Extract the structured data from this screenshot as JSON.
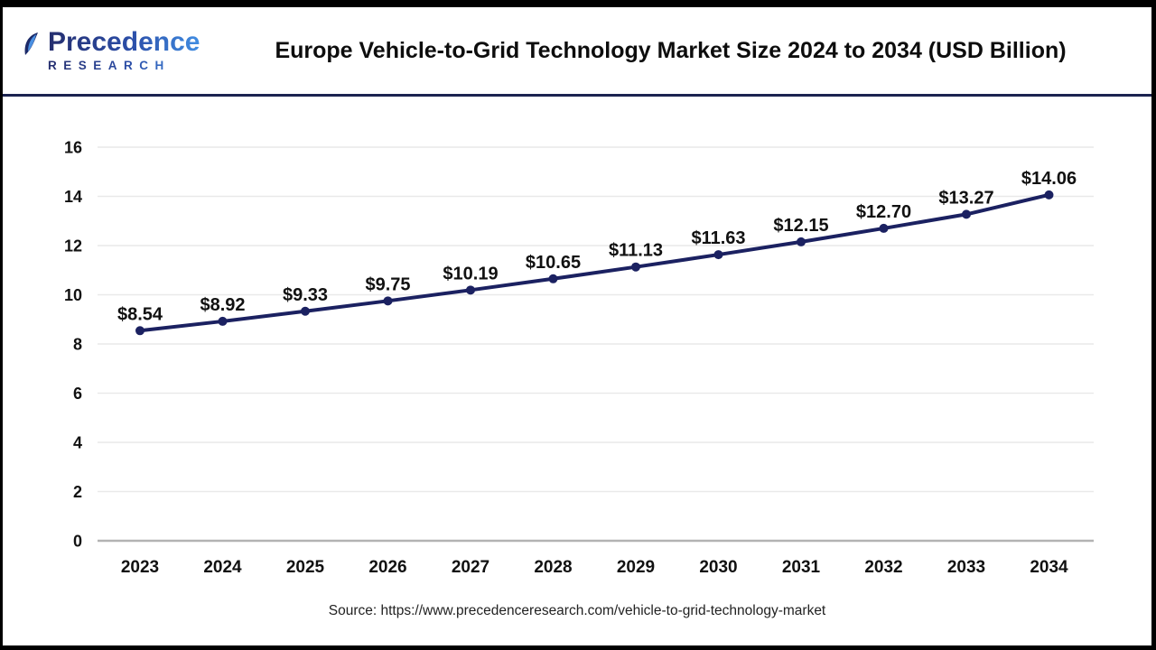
{
  "header": {
    "logo": {
      "line1": "Precedence",
      "line2": "RESEARCH"
    },
    "title": "Europe Vehicle-to-Grid Technology Market Size 2024 to 2034 (USD Billion)"
  },
  "chart_data": {
    "type": "line",
    "title": "Europe Vehicle-to-Grid Technology Market Size 2024 to 2034 (USD Billion)",
    "categories": [
      "2023",
      "2024",
      "2025",
      "2026",
      "2027",
      "2028",
      "2029",
      "2030",
      "2031",
      "2032",
      "2033",
      "2034"
    ],
    "values": [
      8.54,
      8.92,
      9.33,
      9.75,
      10.19,
      10.65,
      11.13,
      11.63,
      12.15,
      12.7,
      13.27,
      14.06
    ],
    "point_labels": [
      "$8.54",
      "$8.92",
      "$9.33",
      "$9.75",
      "$10.19",
      "$10.65",
      "$11.13",
      "$11.63",
      "$12.15",
      "$12.70",
      "$13.27",
      "$14.06"
    ],
    "xlabel": "",
    "ylabel": "",
    "ylim": [
      0,
      16
    ],
    "yticks": [
      0,
      2,
      4,
      6,
      8,
      10,
      12,
      14,
      16
    ],
    "grid": true,
    "legend": "none",
    "line_color": "#1b2161",
    "marker": "circle",
    "grid_color": "#e9e9e9",
    "axis_color": "#b3b3b3",
    "label_color": "#111111"
  },
  "footer": {
    "source": "Source: https://www.precedenceresearch.com/vehicle-to-grid-technology-market"
  }
}
